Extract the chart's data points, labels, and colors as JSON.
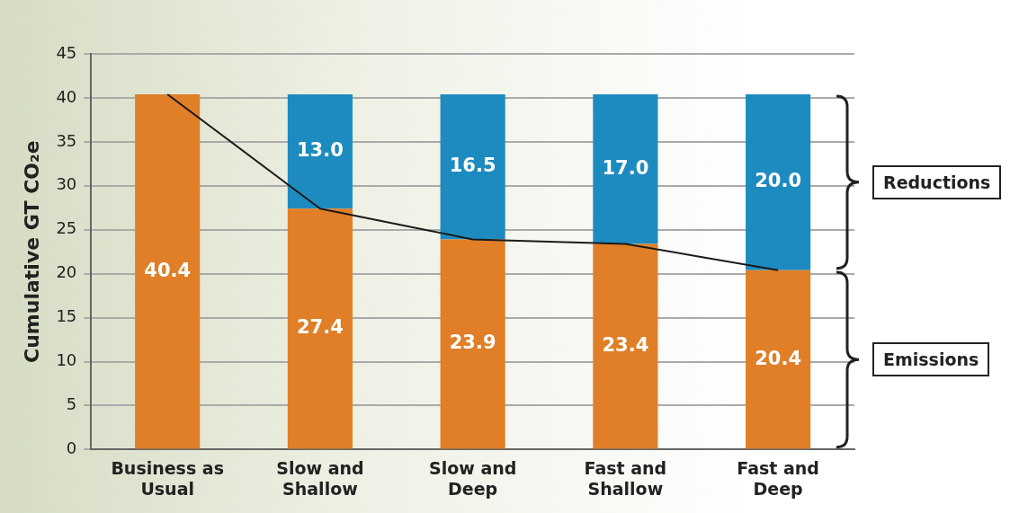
{
  "chart_data": {
    "type": "bar",
    "stacked": true,
    "ylabel": "Cumulative GT CO₂e",
    "categories": [
      "Business as Usual",
      "Slow and Shallow",
      "Slow and Deep",
      "Fast and Shallow",
      "Fast and Deep"
    ],
    "ylim": [
      0,
      45
    ],
    "yticks": [
      0,
      5,
      10,
      15,
      20,
      25,
      30,
      35,
      40,
      45
    ],
    "grid": "y",
    "series": [
      {
        "name": "Emissions",
        "color": "#e07f27",
        "values": [
          40.4,
          27.4,
          23.9,
          23.4,
          20.4
        ],
        "value_labels": [
          "40.4",
          "27.4",
          "23.9",
          "23.4",
          "20.4"
        ]
      },
      {
        "name": "Reductions",
        "color": "#1e8bc0",
        "values": [
          null,
          13.0,
          16.5,
          17.0,
          20.0
        ],
        "value_labels": [
          null,
          "13.0",
          "16.5",
          "17.0",
          "20.0"
        ]
      },
      {
        "type": "line",
        "color": "#1a1a1a",
        "values": [
          40.4,
          27.4,
          23.9,
          23.4,
          20.4
        ],
        "marker": "none",
        "line_style": "solid"
      }
    ]
  }
}
